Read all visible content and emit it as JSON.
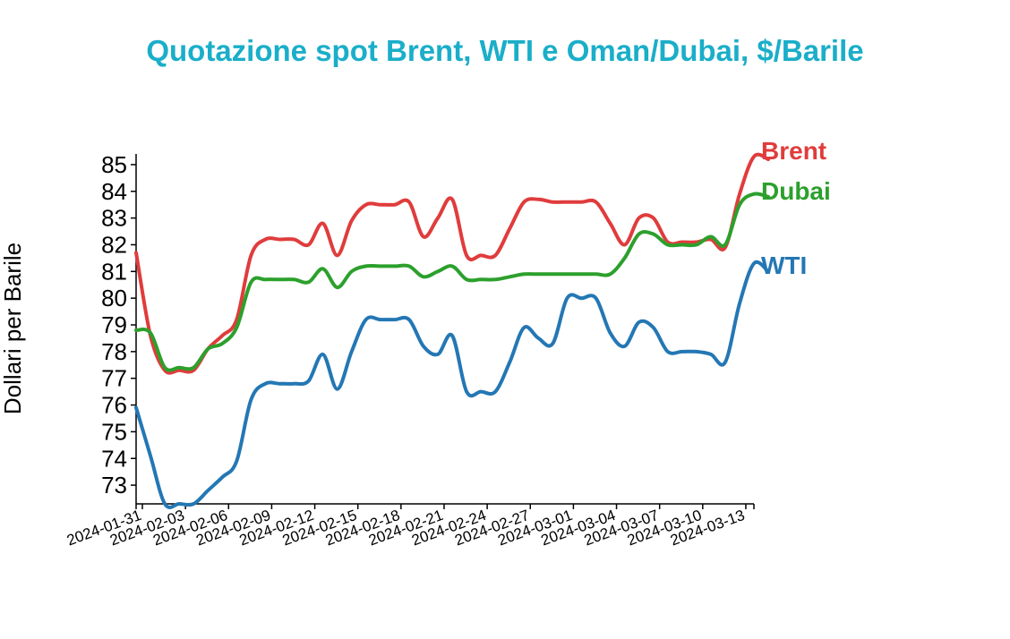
{
  "chart_data": {
    "type": "line",
    "title": "Quotazione spot Brent, WTI e Oman/Dubai, $/Barile",
    "xlabel": "",
    "ylabel": "Dollari per Barile",
    "xlim": [
      "2024-01-31",
      "2024-03-14"
    ],
    "ylim": [
      72.3,
      85.4
    ],
    "y_ticks": [
      73,
      74,
      75,
      76,
      77,
      78,
      79,
      80,
      81,
      82,
      83,
      84,
      85
    ],
    "x_ticks": [
      "2024-01-31",
      "2024-02-03",
      "2024-02-06",
      "2024-02-09",
      "2024-02-12",
      "2024-02-15",
      "2024-02-18",
      "2024-02-21",
      "2024-02-24",
      "2024-02-27",
      "2024-03-01",
      "2024-03-04",
      "2024-03-07",
      "2024-03-10",
      "2024-03-13"
    ],
    "legend": "direct labels at line ends",
    "grid": false,
    "series": [
      {
        "name": "Brent",
        "color": "#e03c3c",
        "points": [
          [
            "2024-01-31",
            81.7
          ],
          [
            "2024-02-01",
            78.6
          ],
          [
            "2024-02-02",
            77.3
          ],
          [
            "2024-02-03",
            77.3
          ],
          [
            "2024-02-04",
            77.3
          ],
          [
            "2024-02-05",
            78.1
          ],
          [
            "2024-02-06",
            78.6
          ],
          [
            "2024-02-07",
            79.2
          ],
          [
            "2024-02-08",
            81.6
          ],
          [
            "2024-02-09",
            82.2
          ],
          [
            "2024-02-10",
            82.2
          ],
          [
            "2024-02-11",
            82.2
          ],
          [
            "2024-02-12",
            82.0
          ],
          [
            "2024-02-13",
            82.8
          ],
          [
            "2024-02-14",
            81.6
          ],
          [
            "2024-02-15",
            82.9
          ],
          [
            "2024-02-16",
            83.5
          ],
          [
            "2024-02-17",
            83.5
          ],
          [
            "2024-02-18",
            83.5
          ],
          [
            "2024-02-19",
            83.6
          ],
          [
            "2024-02-20",
            82.3
          ],
          [
            "2024-02-21",
            83.0
          ],
          [
            "2024-02-22",
            83.7
          ],
          [
            "2024-02-23",
            81.6
          ],
          [
            "2024-02-24",
            81.6
          ],
          [
            "2024-02-25",
            81.6
          ],
          [
            "2024-02-26",
            82.6
          ],
          [
            "2024-02-27",
            83.6
          ],
          [
            "2024-02-28",
            83.7
          ],
          [
            "2024-02-29",
            83.6
          ],
          [
            "2024-03-01",
            83.6
          ],
          [
            "2024-03-02",
            83.6
          ],
          [
            "2024-03-03",
            83.6
          ],
          [
            "2024-03-04",
            82.8
          ],
          [
            "2024-03-05",
            82.0
          ],
          [
            "2024-03-06",
            83.0
          ],
          [
            "2024-03-07",
            83.0
          ],
          [
            "2024-03-08",
            82.1
          ],
          [
            "2024-03-09",
            82.1
          ],
          [
            "2024-03-10",
            82.1
          ],
          [
            "2024-03-11",
            82.2
          ],
          [
            "2024-03-12",
            81.9
          ],
          [
            "2024-03-13",
            83.9
          ],
          [
            "2024-03-14",
            85.3
          ],
          [
            "2024-03-15",
            85.2
          ]
        ]
      },
      {
        "name": "Dubai",
        "color": "#2ca02c",
        "points": [
          [
            "2024-01-31",
            78.8
          ],
          [
            "2024-02-01",
            78.7
          ],
          [
            "2024-02-02",
            77.4
          ],
          [
            "2024-02-03",
            77.4
          ],
          [
            "2024-02-04",
            77.4
          ],
          [
            "2024-02-05",
            78.1
          ],
          [
            "2024-02-06",
            78.3
          ],
          [
            "2024-02-07",
            78.9
          ],
          [
            "2024-02-08",
            80.6
          ],
          [
            "2024-02-09",
            80.7
          ],
          [
            "2024-02-10",
            80.7
          ],
          [
            "2024-02-11",
            80.7
          ],
          [
            "2024-02-12",
            80.6
          ],
          [
            "2024-02-13",
            81.1
          ],
          [
            "2024-02-14",
            80.4
          ],
          [
            "2024-02-15",
            81.0
          ],
          [
            "2024-02-16",
            81.2
          ],
          [
            "2024-02-17",
            81.2
          ],
          [
            "2024-02-18",
            81.2
          ],
          [
            "2024-02-19",
            81.2
          ],
          [
            "2024-02-20",
            80.8
          ],
          [
            "2024-02-21",
            81.0
          ],
          [
            "2024-02-22",
            81.2
          ],
          [
            "2024-02-23",
            80.7
          ],
          [
            "2024-02-24",
            80.7
          ],
          [
            "2024-02-25",
            80.7
          ],
          [
            "2024-02-26",
            80.8
          ],
          [
            "2024-02-27",
            80.9
          ],
          [
            "2024-02-28",
            80.9
          ],
          [
            "2024-02-29",
            80.9
          ],
          [
            "2024-03-01",
            80.9
          ],
          [
            "2024-03-02",
            80.9
          ],
          [
            "2024-03-03",
            80.9
          ],
          [
            "2024-03-04",
            80.9
          ],
          [
            "2024-03-05",
            81.5
          ],
          [
            "2024-03-06",
            82.4
          ],
          [
            "2024-03-07",
            82.4
          ],
          [
            "2024-03-08",
            82.0
          ],
          [
            "2024-03-09",
            82.0
          ],
          [
            "2024-03-10",
            82.0
          ],
          [
            "2024-03-11",
            82.3
          ],
          [
            "2024-03-12",
            82.0
          ],
          [
            "2024-03-13",
            83.5
          ],
          [
            "2024-03-14",
            83.9
          ],
          [
            "2024-03-15",
            83.8
          ]
        ]
      },
      {
        "name": "WTI",
        "color": "#2477b4",
        "points": [
          [
            "2024-01-31",
            75.9
          ],
          [
            "2024-02-01",
            74.1
          ],
          [
            "2024-02-02",
            72.3
          ],
          [
            "2024-02-03",
            72.3
          ],
          [
            "2024-02-04",
            72.3
          ],
          [
            "2024-02-05",
            72.8
          ],
          [
            "2024-02-06",
            73.3
          ],
          [
            "2024-02-07",
            73.9
          ],
          [
            "2024-02-08",
            76.2
          ],
          [
            "2024-02-09",
            76.8
          ],
          [
            "2024-02-10",
            76.8
          ],
          [
            "2024-02-11",
            76.8
          ],
          [
            "2024-02-12",
            76.9
          ],
          [
            "2024-02-13",
            77.9
          ],
          [
            "2024-02-14",
            76.6
          ],
          [
            "2024-02-15",
            78.0
          ],
          [
            "2024-02-16",
            79.2
          ],
          [
            "2024-02-17",
            79.2
          ],
          [
            "2024-02-18",
            79.2
          ],
          [
            "2024-02-19",
            79.2
          ],
          [
            "2024-02-20",
            78.2
          ],
          [
            "2024-02-21",
            77.9
          ],
          [
            "2024-02-22",
            78.6
          ],
          [
            "2024-02-23",
            76.5
          ],
          [
            "2024-02-24",
            76.5
          ],
          [
            "2024-02-25",
            76.5
          ],
          [
            "2024-02-26",
            77.6
          ],
          [
            "2024-02-27",
            78.9
          ],
          [
            "2024-02-28",
            78.5
          ],
          [
            "2024-02-29",
            78.3
          ],
          [
            "2024-03-01",
            80.0
          ],
          [
            "2024-03-02",
            80.0
          ],
          [
            "2024-03-03",
            80.0
          ],
          [
            "2024-03-04",
            78.7
          ],
          [
            "2024-03-05",
            78.2
          ],
          [
            "2024-03-06",
            79.1
          ],
          [
            "2024-03-07",
            78.9
          ],
          [
            "2024-03-08",
            78.0
          ],
          [
            "2024-03-09",
            78.0
          ],
          [
            "2024-03-10",
            78.0
          ],
          [
            "2024-03-11",
            77.9
          ],
          [
            "2024-03-12",
            77.6
          ],
          [
            "2024-03-13",
            79.8
          ],
          [
            "2024-03-14",
            81.3
          ],
          [
            "2024-03-15",
            81.0
          ]
        ]
      }
    ]
  }
}
